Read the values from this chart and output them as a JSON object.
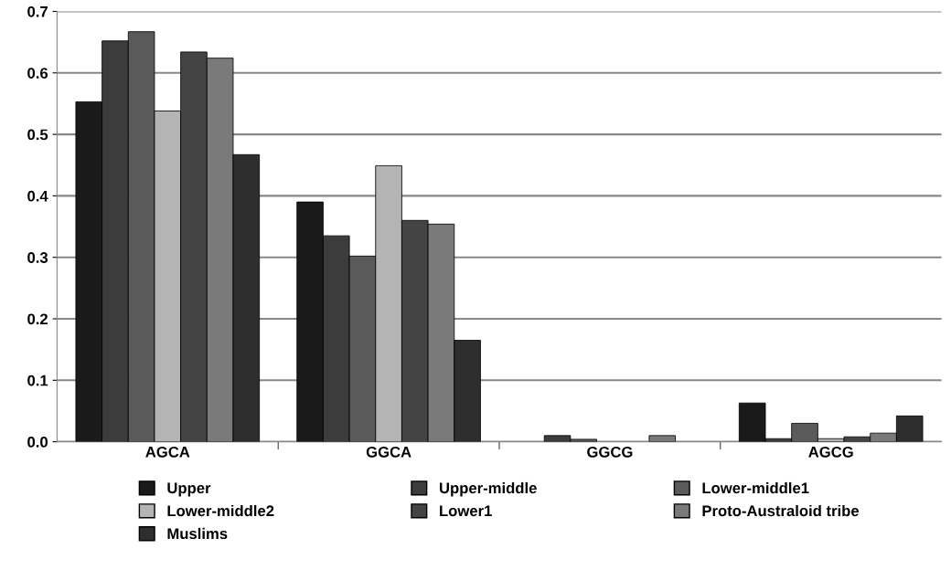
{
  "chart_data": {
    "type": "bar",
    "categories": [
      "AGCA",
      "GGCA",
      "GGCG",
      "AGCG"
    ],
    "series": [
      {
        "name": "Upper",
        "color": "#1a1a1a",
        "values": [
          0.553,
          0.39,
          null,
          0.063
        ]
      },
      {
        "name": "Upper-middle",
        "color": "#3c3c3c",
        "values": [
          0.652,
          0.335,
          0.01,
          0.005
        ]
      },
      {
        "name": "Lower-middle1",
        "color": "#5a5a5a",
        "values": [
          0.667,
          0.302,
          0.004,
          0.03
        ]
      },
      {
        "name": "Lower-middle2",
        "color": "#b4b4b4",
        "values": [
          0.538,
          0.449,
          null,
          0.005
        ]
      },
      {
        "name": "Lower1",
        "color": "#444444",
        "values": [
          0.634,
          0.36,
          null,
          0.008
        ]
      },
      {
        "name": "Proto-Australoid tribe",
        "color": "#7a7a7a",
        "values": [
          0.624,
          0.354,
          0.01,
          0.014
        ]
      },
      {
        "name": "Muslims",
        "color": "#2e2e2e",
        "values": [
          0.467,
          0.165,
          null,
          0.042
        ]
      }
    ],
    "ylim": [
      0,
      0.7
    ],
    "yticks": [
      {
        "value": 0,
        "label": "0.0"
      },
      0.1,
      0.2,
      0.3,
      0.4,
      0.5,
      0.6,
      0.7
    ],
    "grid": "y",
    "legend": "bottom"
  }
}
